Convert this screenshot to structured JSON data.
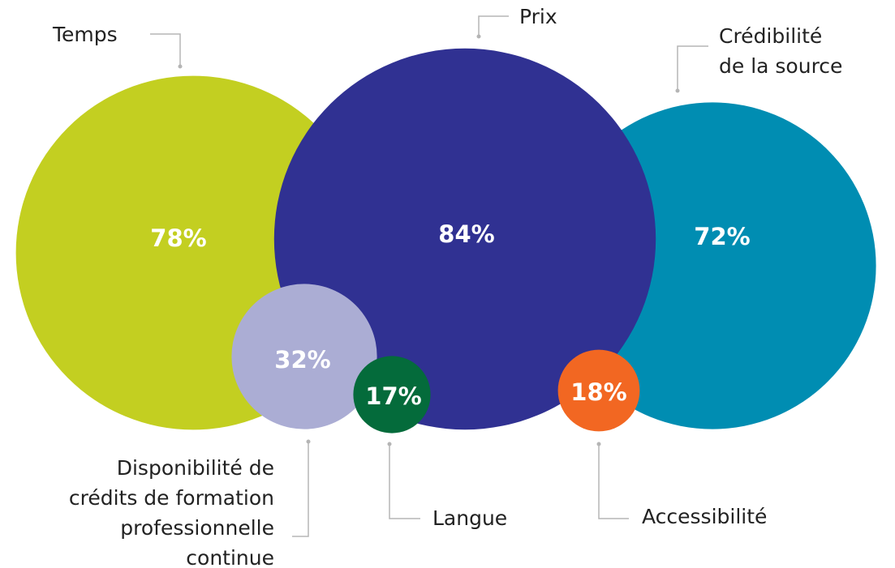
{
  "chart_data": {
    "type": "bubble",
    "categories": [
      "Temps",
      "Prix",
      "Crédibilité\nde la source",
      "Disponibilité de\ncrédits de formation\nprofessionnelle\ncontinue",
      "Langue",
      "Accessibilité"
    ],
    "values": [
      78,
      84,
      72,
      32,
      17,
      18
    ],
    "value_labels": [
      "78%",
      "84%",
      "72%",
      "32%",
      "17%",
      "18%"
    ],
    "colors": [
      "#c3cf21",
      "#303192",
      "#008db2",
      "#abadd4",
      "#046b3b",
      "#f26722"
    ]
  }
}
